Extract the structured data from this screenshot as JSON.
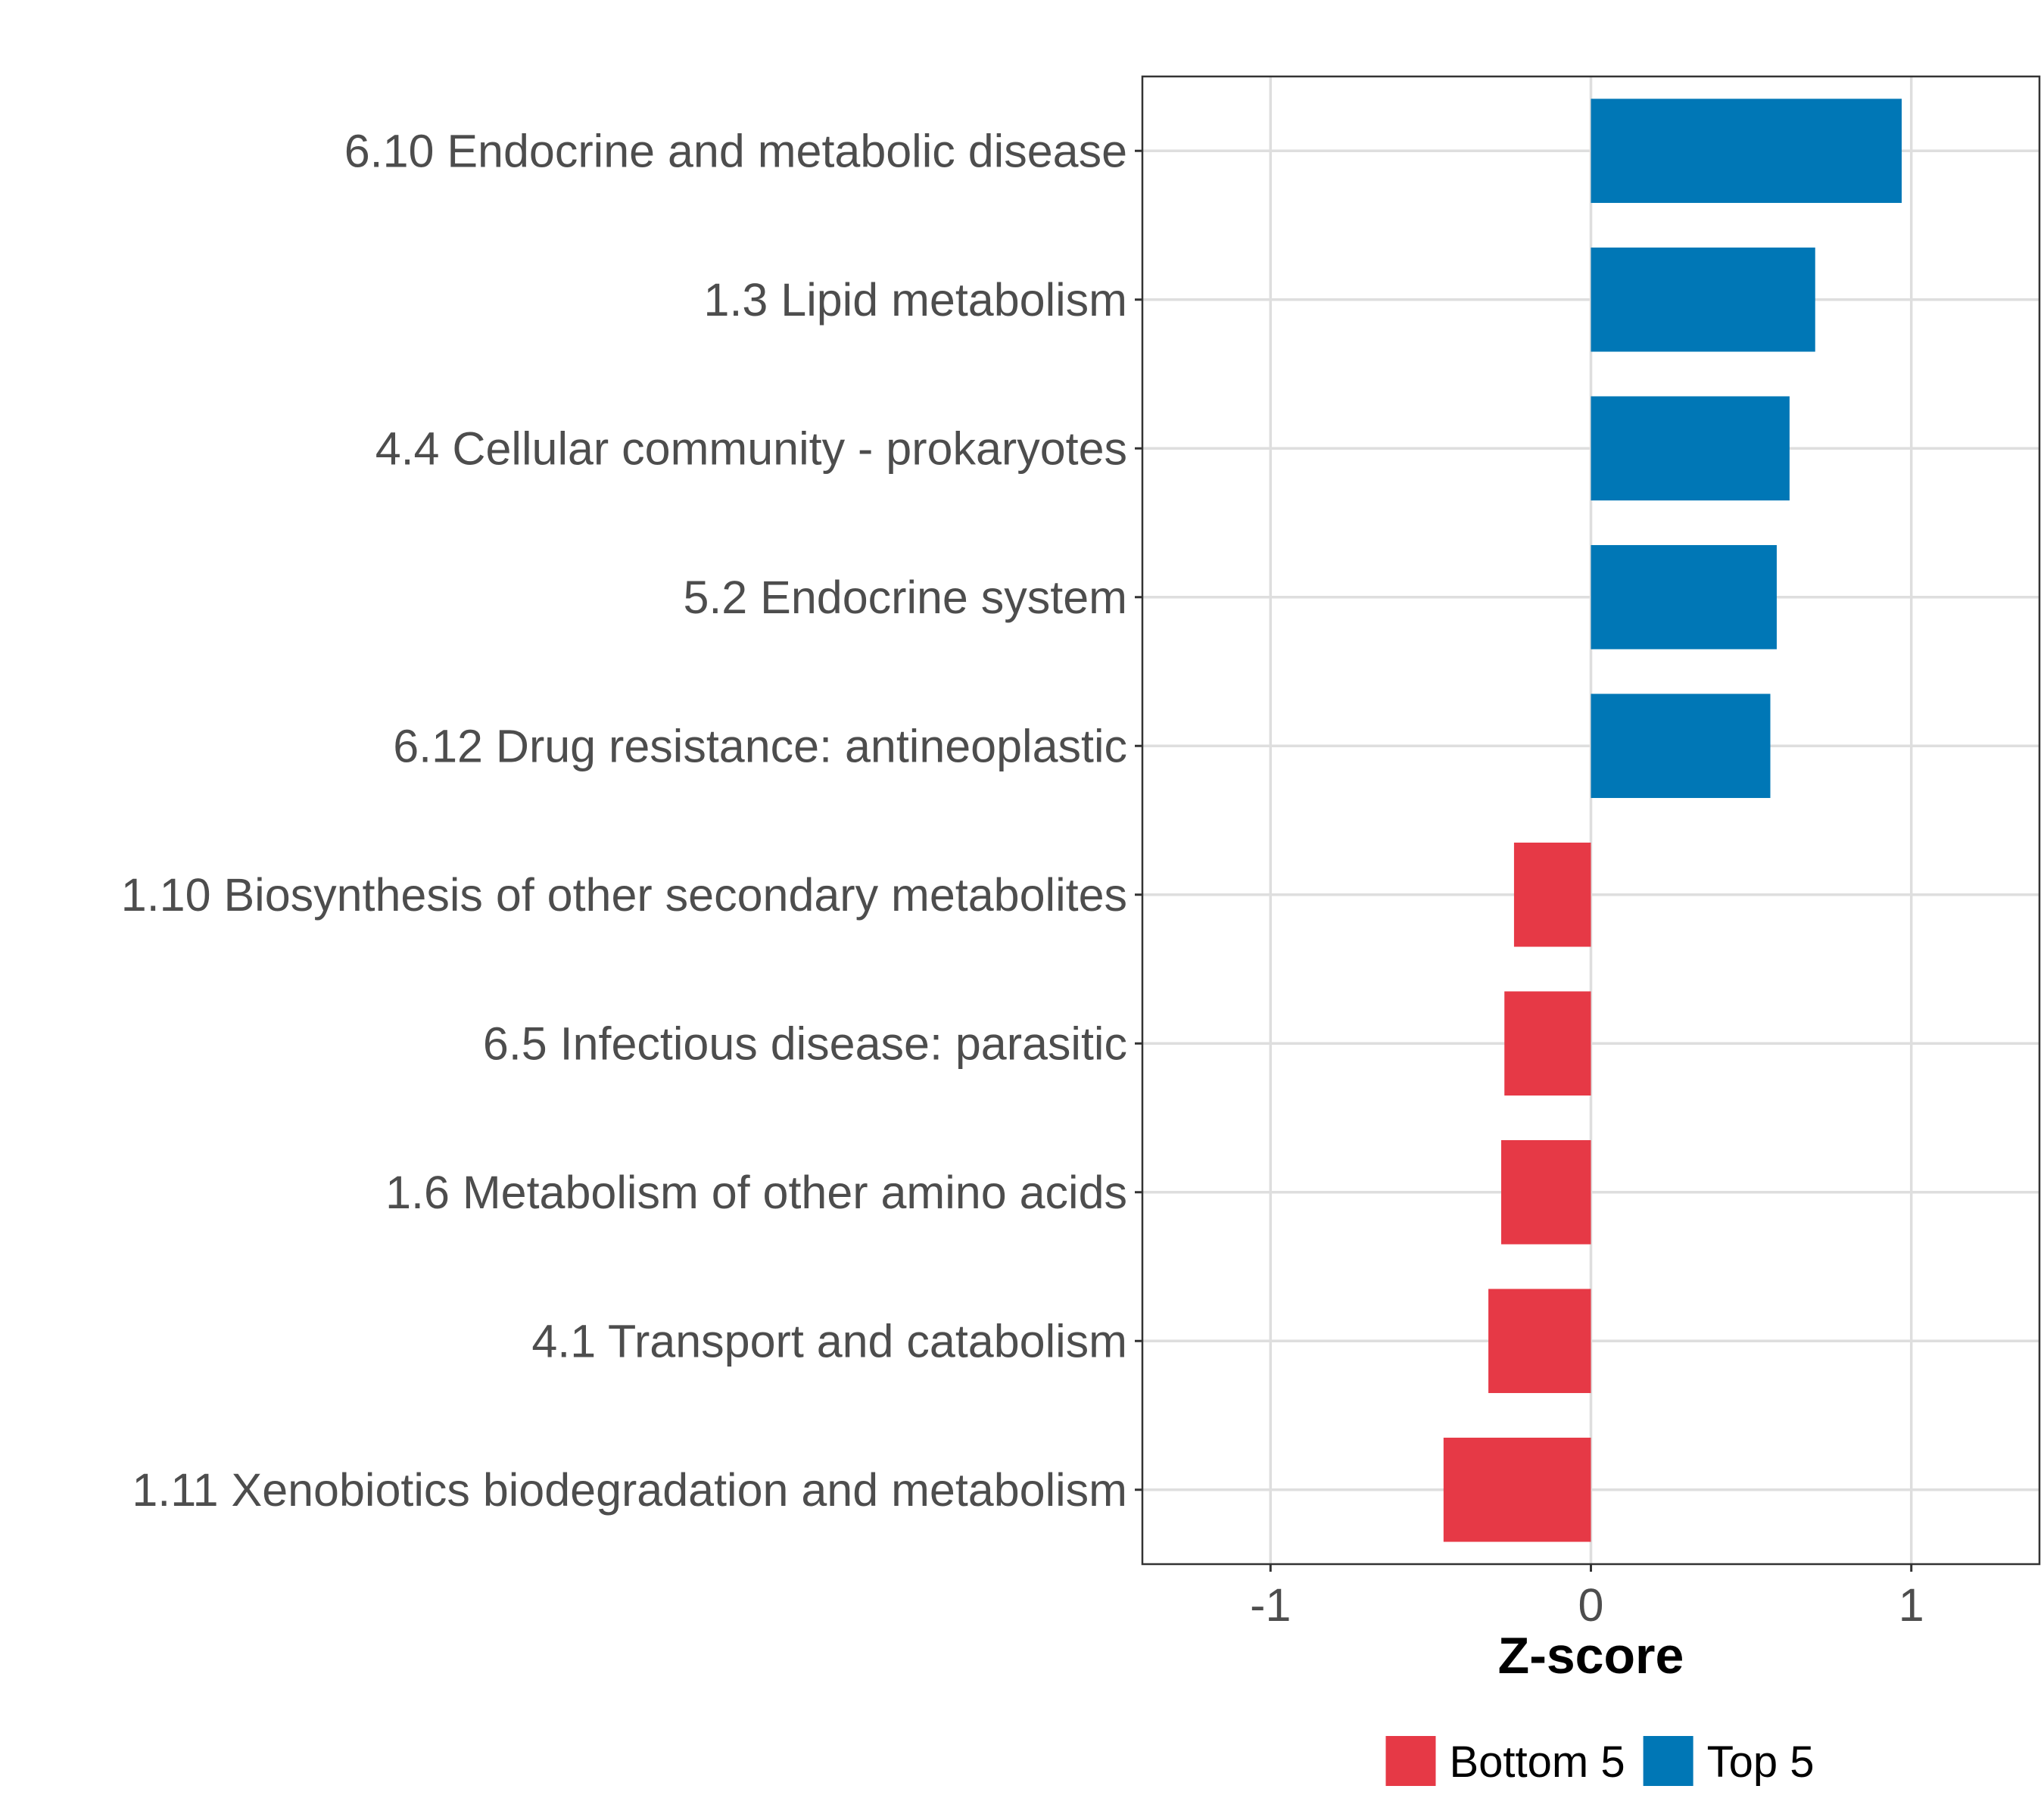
{
  "chart_data": {
    "type": "bar",
    "orientation": "horizontal",
    "title": "",
    "xlabel": "Z-score",
    "ylabel": "",
    "xlim": [
      -1.4,
      1.4
    ],
    "xticks": [
      -1,
      0,
      1
    ],
    "xtick_labels": [
      "-1",
      "0",
      "1"
    ],
    "grid": true,
    "legend_position": "bottom",
    "categories": [
      "6.10 Endocrine and metabolic disease",
      "1.3 Lipid metabolism",
      "4.4 Cellular community - prokaryotes",
      "5.2 Endocrine system",
      "6.12 Drug resistance: antineoplastic",
      "1.10 Biosynthesis of other secondary metabolites",
      "6.5 Infectious disease: parasitic",
      "1.6 Metabolism of other amino acids",
      "4.1 Transport and catabolism",
      "1.11 Xenobiotics biodegradation and metabolism"
    ],
    "values": [
      0.97,
      0.7,
      0.62,
      0.58,
      0.56,
      -0.24,
      -0.27,
      -0.28,
      -0.32,
      -0.46
    ],
    "groups": [
      "Top 5",
      "Top 5",
      "Top 5",
      "Top 5",
      "Top 5",
      "Bottom 5",
      "Bottom 5",
      "Bottom 5",
      "Bottom 5",
      "Bottom 5"
    ],
    "legend": [
      {
        "name": "Bottom 5",
        "color": "#e63946"
      },
      {
        "name": "Top 5",
        "color": "#0077b6"
      }
    ]
  }
}
